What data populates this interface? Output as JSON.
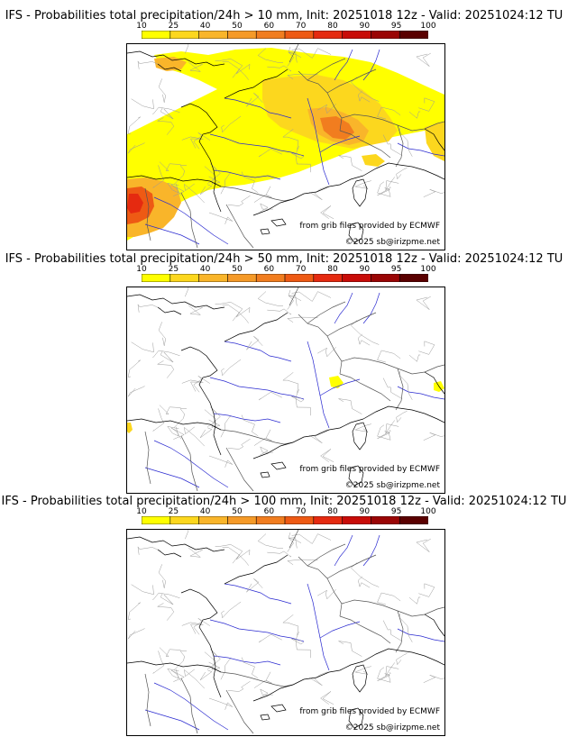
{
  "panels": [
    {
      "title": "IFS - Probabilities total precipitation/24h > 10 mm, Init: 20251018 12z - Valid: 20251024:12 TU",
      "threshold_mm": 10,
      "precip_layer": "heavy"
    },
    {
      "title": "IFS - Probabilities total precipitation/24h > 50 mm, Init: 20251018 12z - Valid: 20251024:12 TU",
      "threshold_mm": 50,
      "precip_layer": "light"
    },
    {
      "title": "IFS - Probabilities total precipitation/24h > 100 mm, Init: 20251018 12z - Valid: 20251024:12 TU",
      "threshold_mm": 100,
      "precip_layer": "none"
    }
  ],
  "colorbar": {
    "labels": [
      "10",
      "25",
      "40",
      "50",
      "60",
      "70",
      "80",
      "90",
      "95",
      "100"
    ],
    "colors": [
      "#ffff00",
      "#fcd71e",
      "#f9b52a",
      "#f59a28",
      "#f17d1f",
      "#ee5a14",
      "#e52a10",
      "#c80c08",
      "#9a0505",
      "#5a0000"
    ]
  },
  "credits": {
    "source": "from grib files provided by ECMWF",
    "copyright": "©2025 sb@irizpme.net"
  },
  "map_colors": {
    "coast": "#000000",
    "borders": "#9a9a9a",
    "rivers": "#2a2ad0"
  }
}
